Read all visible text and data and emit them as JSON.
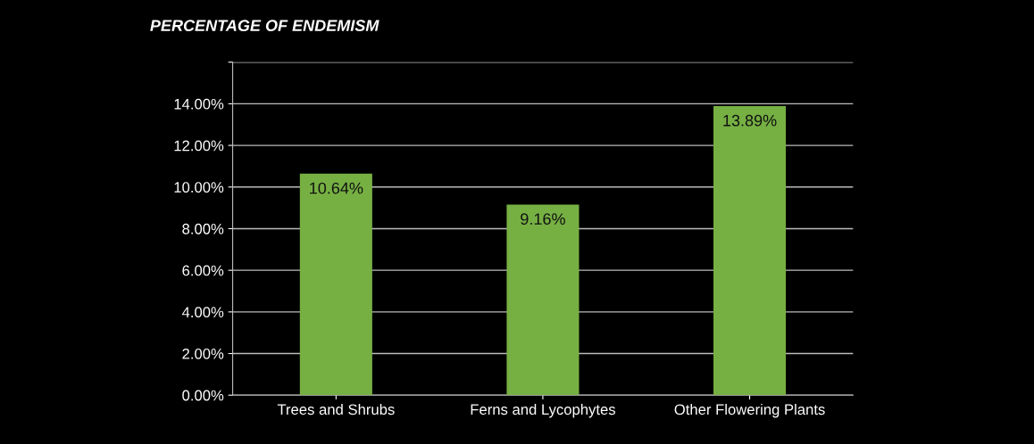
{
  "chart_data": {
    "type": "bar",
    "title": "PERCENTAGE OF ENDEMISM",
    "categories": [
      "Trees and Shrubs",
      "Ferns and Lycophytes",
      "Other Flowering Plants"
    ],
    "values": [
      10.64,
      9.16,
      13.89
    ],
    "color": "#76b043",
    "value_labels": [
      "10.64%",
      "9.16%",
      "13.89%"
    ],
    "ylim": [
      0,
      16
    ],
    "yticks": [
      {
        "value": 0,
        "label": "0.00%"
      },
      {
        "value": 2,
        "label": "2.00%"
      },
      {
        "value": 4,
        "label": "4.00%"
      },
      {
        "value": 6,
        "label": "6.00%"
      },
      {
        "value": 8,
        "label": "8.00%"
      },
      {
        "value": 10,
        "label": "10.00%"
      },
      {
        "value": 12,
        "label": "12.00%"
      },
      {
        "value": 14,
        "label": "14.00%"
      },
      {
        "value": 16,
        "label": null
      }
    ],
    "grid": "y",
    "legend": false
  }
}
